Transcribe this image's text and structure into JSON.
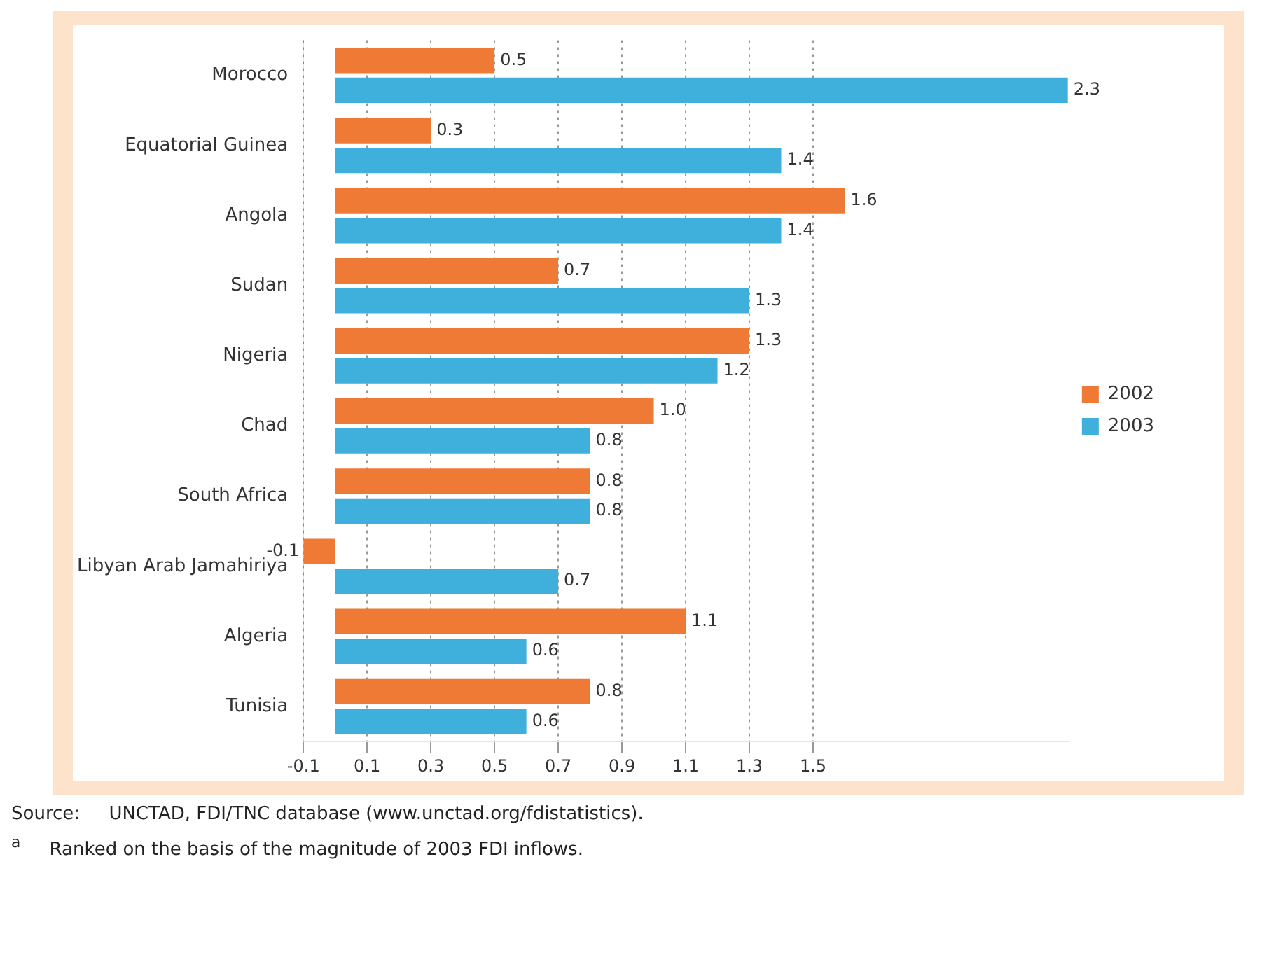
{
  "chart_data": {
    "type": "bar",
    "orientation": "horizontal",
    "categories": [
      "Morocco",
      "Equatorial Guinea",
      "Angola",
      "Sudan",
      "Nigeria",
      "Chad",
      "South Africa",
      "Libyan Arab Jamahiriya",
      "Algeria",
      "Tunisia"
    ],
    "series": [
      {
        "name": "2002",
        "color": "#ee7a35",
        "values": [
          0.5,
          0.3,
          1.6,
          0.7,
          1.3,
          1.0,
          0.8,
          -0.1,
          1.1,
          0.8
        ],
        "value_labels": [
          "0.5",
          "0.3",
          "1.6",
          "0.7",
          "1.3",
          "1.0",
          "0.8",
          "-0.1",
          "1.1",
          "0.8"
        ]
      },
      {
        "name": "2003",
        "color": "#3fb0dc",
        "values": [
          2.3,
          1.4,
          1.4,
          1.3,
          1.2,
          0.8,
          0.8,
          0.7,
          0.6,
          0.6
        ],
        "value_labels": [
          "2.3",
          "1.4",
          "1.4",
          "1.3",
          "1.2",
          "0.8",
          "0.8",
          "0.7",
          "0.6",
          "0.6"
        ]
      }
    ],
    "xlim": [
      -0.1,
      2.3
    ],
    "xticks": [
      -0.1,
      0.1,
      0.3,
      0.5,
      0.7,
      0.9,
      1.1,
      1.3,
      1.5
    ],
    "grid": "x",
    "legend": "right",
    "annotations": [
      "Source:     UNCTAD, FDI/TNC database (www.unctad.org/fdistatistics).",
      "$^{a}$     Ranked on the basis of the magnitude of 2003 FDI inflows."
    ]
  }
}
